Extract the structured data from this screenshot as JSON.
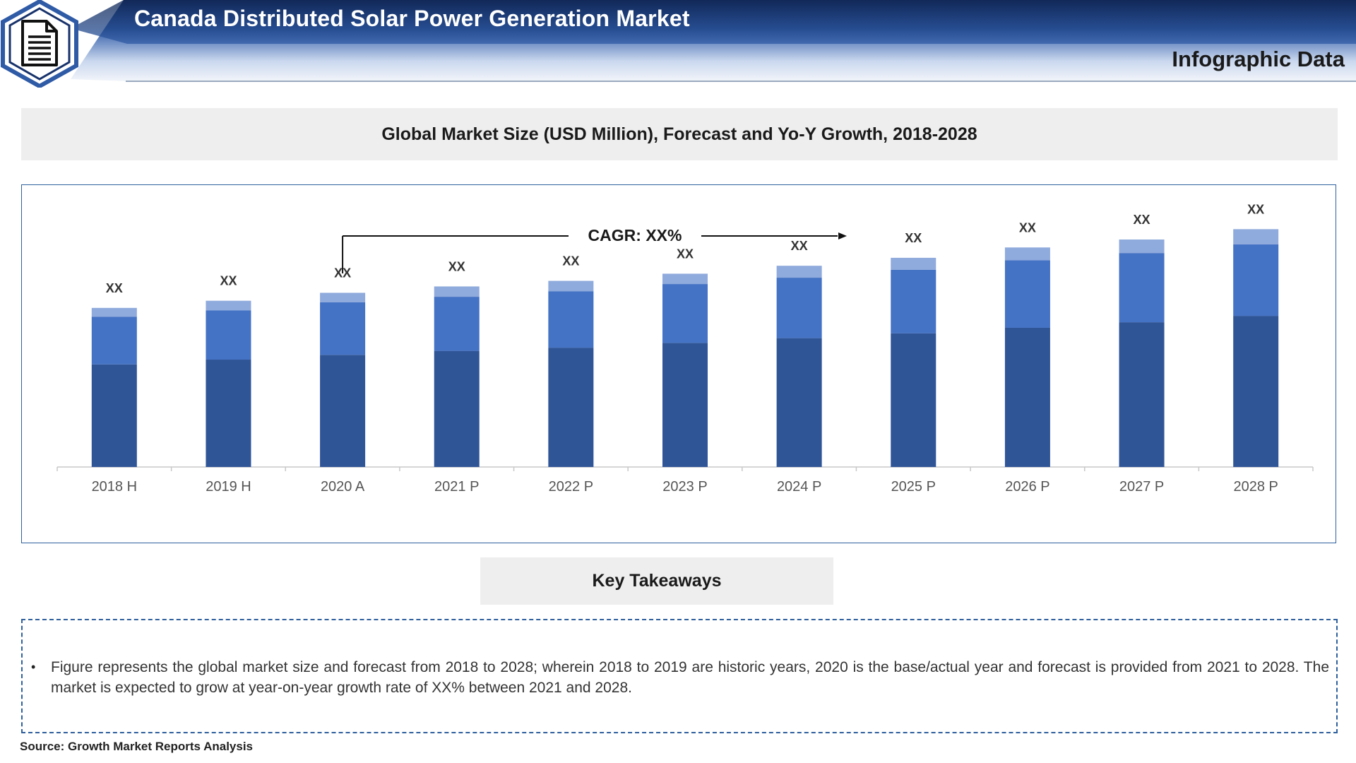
{
  "header": {
    "title": "Canada Distributed Solar Power Generation Market",
    "subtitle": "Infographic Data",
    "logo_icon": "document-icon"
  },
  "colors": {
    "banner_dark": "#17326b",
    "banner_mid": "#2e5aa6",
    "banner_light": "#dfe8f5",
    "bar_bottom": "#2f5597",
    "bar_middle": "#4472c4",
    "bar_top": "#8faadc",
    "frame_border": "#2e5f9e"
  },
  "chart_title": "Global Market Size (USD Million), Forecast and Yo-Y Growth, 2018-2028",
  "chart_data": {
    "type": "bar",
    "stacked": true,
    "categories": [
      "2018 H",
      "2019 H",
      "2020 A",
      "2021 P",
      "2022 P",
      "2023 P",
      "2024 P",
      "2025 P",
      "2026 P",
      "2027 P",
      "2028 P"
    ],
    "series": [
      {
        "values": [
          129,
          135,
          141,
          146,
          150,
          156,
          162,
          168,
          175,
          182,
          190
        ]
      },
      {
        "values": [
          60,
          62,
          66,
          68,
          71,
          74,
          76,
          80,
          85,
          87,
          90
        ]
      },
      {
        "values": [
          11,
          12,
          12,
          13,
          13,
          13,
          15,
          15,
          16,
          17,
          19
        ]
      }
    ],
    "data_labels": [
      "XX",
      "XX",
      "XX",
      "XX",
      "XX",
      "XX",
      "XX",
      "XX",
      "XX",
      "XX",
      "XX"
    ],
    "annotation": "CAGR: XX%",
    "xlabel": "",
    "ylabel": "",
    "ylim": [
      0,
      310
    ],
    "grid": false,
    "legend": "none"
  },
  "key_takeaways": {
    "title": "Key Takeaways",
    "bullet": "•",
    "text": "Figure represents the global market size and forecast from 2018 to 2028; wherein 2018 to 2019 are historic years, 2020 is the base/actual year and forecast is provided from 2021 to 2028. The market is expected to grow at year-on-year growth rate of XX% between 2021 and 2028."
  },
  "source": "Source: Growth Market Reports Analysis"
}
